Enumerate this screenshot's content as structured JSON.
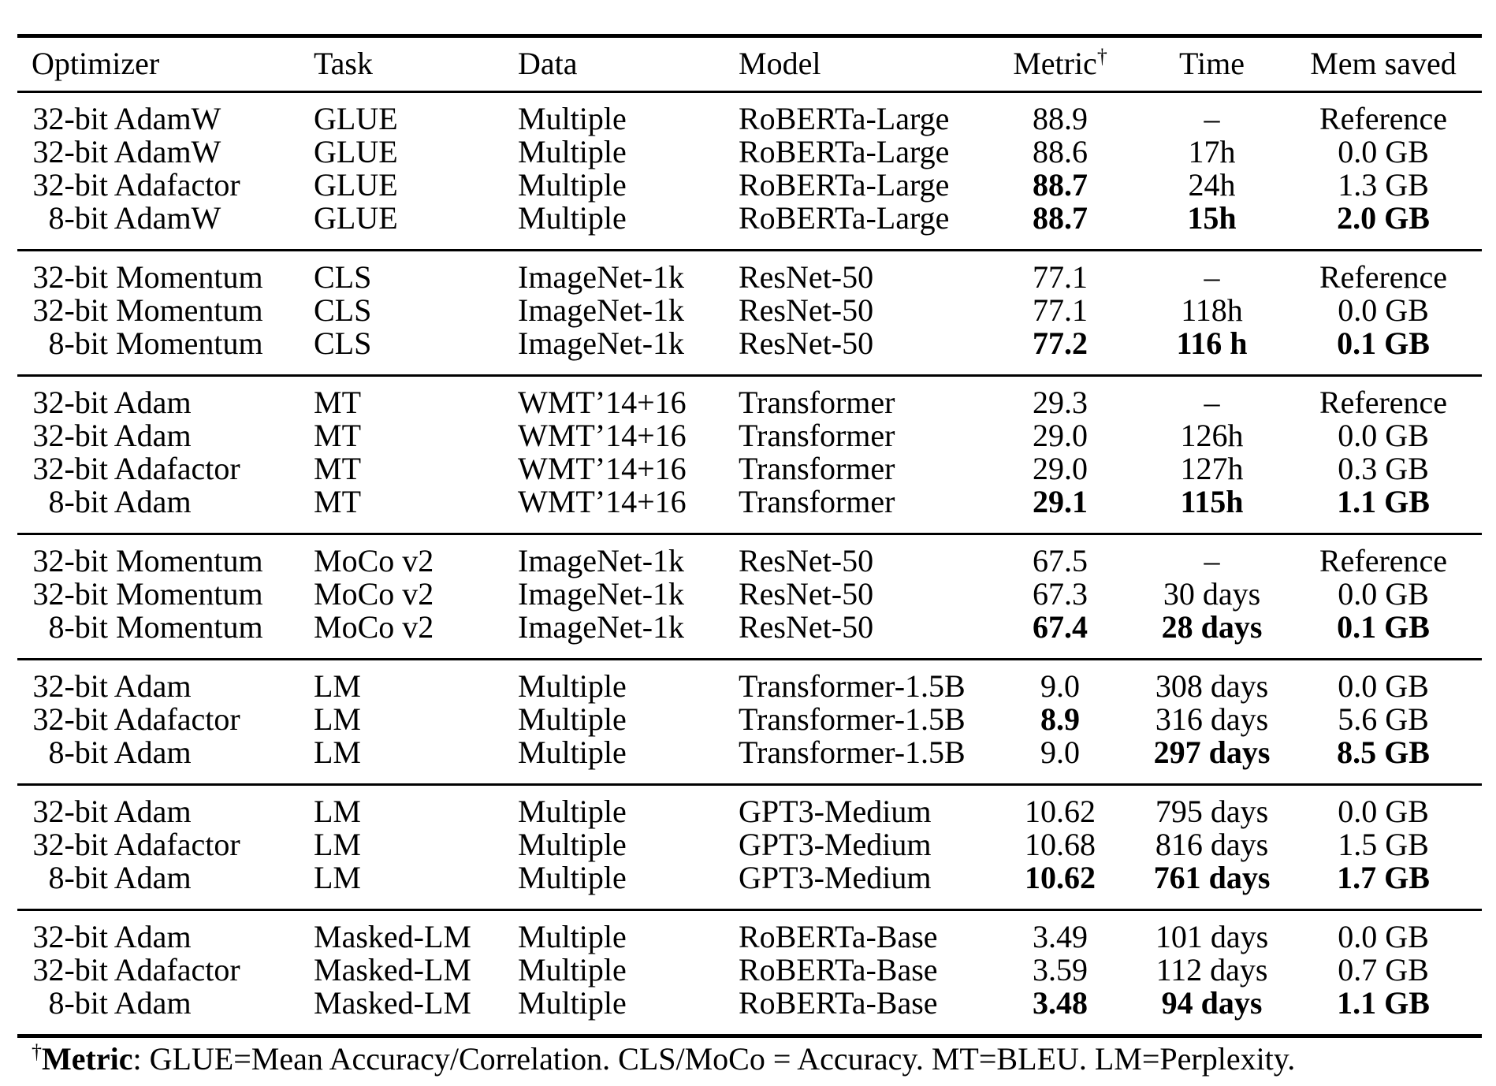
{
  "colors": {
    "background": "#ffffff",
    "text": "#000000",
    "rule": "#000000"
  },
  "table": {
    "columns": [
      {
        "key": "optimizer",
        "label": "Optimizer",
        "align": "left"
      },
      {
        "key": "task",
        "label": "Task",
        "align": "left"
      },
      {
        "key": "data",
        "label": "Data",
        "align": "left"
      },
      {
        "key": "model",
        "label": "Model",
        "align": "left"
      },
      {
        "key": "metric",
        "label": "Metric",
        "superscript": "†",
        "align": "center"
      },
      {
        "key": "time",
        "label": "Time",
        "align": "center"
      },
      {
        "key": "mem",
        "label": "Mem saved",
        "align": "center"
      }
    ],
    "groups": [
      {
        "rows": [
          {
            "bits": "32-bit",
            "name": "AdamW",
            "task": "GLUE",
            "data": "Multiple",
            "model": "RoBERTa-Large",
            "metric": "88.9",
            "time": "–",
            "mem": "Reference",
            "bold": []
          },
          {
            "bits": "32-bit",
            "name": "AdamW",
            "task": "GLUE",
            "data": "Multiple",
            "model": "RoBERTa-Large",
            "metric": "88.6",
            "time": "17h",
            "mem": "0.0 GB",
            "bold": []
          },
          {
            "bits": "32-bit",
            "name": "Adafactor",
            "task": "GLUE",
            "data": "Multiple",
            "model": "RoBERTa-Large",
            "metric": "88.7",
            "time": "24h",
            "mem": "1.3 GB",
            "bold": [
              "metric"
            ]
          },
          {
            "bits": "8-bit",
            "name": "AdamW",
            "task": "GLUE",
            "data": "Multiple",
            "model": "RoBERTa-Large",
            "metric": "88.7",
            "time": "15h",
            "mem": "2.0 GB",
            "bold": [
              "metric",
              "time",
              "mem"
            ]
          }
        ]
      },
      {
        "rows": [
          {
            "bits": "32-bit",
            "name": "Momentum",
            "task": "CLS",
            "data": "ImageNet-1k",
            "model": "ResNet-50",
            "metric": "77.1",
            "time": "–",
            "mem": "Reference",
            "bold": []
          },
          {
            "bits": "32-bit",
            "name": "Momentum",
            "task": "CLS",
            "data": "ImageNet-1k",
            "model": "ResNet-50",
            "metric": "77.1",
            "time": "118h",
            "mem": "0.0 GB",
            "bold": []
          },
          {
            "bits": "8-bit",
            "name": "Momentum",
            "task": "CLS",
            "data": "ImageNet-1k",
            "model": "ResNet-50",
            "metric": "77.2",
            "time": "116 h",
            "mem": "0.1 GB",
            "bold": [
              "metric",
              "time",
              "mem"
            ]
          }
        ]
      },
      {
        "rows": [
          {
            "bits": "32-bit",
            "name": "Adam",
            "task": "MT",
            "data": "WMT’14+16",
            "model": "Transformer",
            "metric": "29.3",
            "time": "–",
            "mem": "Reference",
            "bold": []
          },
          {
            "bits": "32-bit",
            "name": "Adam",
            "task": "MT",
            "data": "WMT’14+16",
            "model": "Transformer",
            "metric": "29.0",
            "time": "126h",
            "mem": "0.0 GB",
            "bold": []
          },
          {
            "bits": "32-bit",
            "name": "Adafactor",
            "task": "MT",
            "data": "WMT’14+16",
            "model": "Transformer",
            "metric": "29.0",
            "time": "127h",
            "mem": "0.3 GB",
            "bold": []
          },
          {
            "bits": "8-bit",
            "name": "Adam",
            "task": "MT",
            "data": "WMT’14+16",
            "model": "Transformer",
            "metric": "29.1",
            "time": "115h",
            "mem": "1.1 GB",
            "bold": [
              "metric",
              "time",
              "mem"
            ]
          }
        ]
      },
      {
        "rows": [
          {
            "bits": "32-bit",
            "name": "Momentum",
            "task": "MoCo v2",
            "data": "ImageNet-1k",
            "model": "ResNet-50",
            "metric": "67.5",
            "time": "–",
            "mem": "Reference",
            "bold": []
          },
          {
            "bits": "32-bit",
            "name": "Momentum",
            "task": "MoCo v2",
            "data": "ImageNet-1k",
            "model": "ResNet-50",
            "metric": "67.3",
            "time": "30 days",
            "mem": "0.0 GB",
            "bold": []
          },
          {
            "bits": "8-bit",
            "name": "Momentum",
            "task": "MoCo v2",
            "data": "ImageNet-1k",
            "model": "ResNet-50",
            "metric": "67.4",
            "time": "28 days",
            "mem": "0.1 GB",
            "bold": [
              "metric",
              "time",
              "mem"
            ]
          }
        ]
      },
      {
        "rows": [
          {
            "bits": "32-bit",
            "name": "Adam",
            "task": "LM",
            "data": "Multiple",
            "model": "Transformer-1.5B",
            "metric": "9.0",
            "time": "308 days",
            "mem": "0.0 GB",
            "bold": []
          },
          {
            "bits": "32-bit",
            "name": "Adafactor",
            "task": "LM",
            "data": "Multiple",
            "model": "Transformer-1.5B",
            "metric": "8.9",
            "time": "316 days",
            "mem": "5.6 GB",
            "bold": [
              "metric"
            ]
          },
          {
            "bits": "8-bit",
            "name": "Adam",
            "task": "LM",
            "data": "Multiple",
            "model": "Transformer-1.5B",
            "metric": "9.0",
            "time": "297 days",
            "mem": "8.5 GB",
            "bold": [
              "time",
              "mem"
            ]
          }
        ]
      },
      {
        "rows": [
          {
            "bits": "32-bit",
            "name": "Adam",
            "task": "LM",
            "data": "Multiple",
            "model": "GPT3-Medium",
            "metric": "10.62",
            "time": "795 days",
            "mem": "0.0 GB",
            "bold": []
          },
          {
            "bits": "32-bit",
            "name": "Adafactor",
            "task": "LM",
            "data": "Multiple",
            "model": "GPT3-Medium",
            "metric": "10.68",
            "time": "816 days",
            "mem": "1.5 GB",
            "bold": []
          },
          {
            "bits": "8-bit",
            "name": "Adam",
            "task": "LM",
            "data": "Multiple",
            "model": "GPT3-Medium",
            "metric": "10.62",
            "time": "761 days",
            "mem": "1.7 GB",
            "bold": [
              "metric",
              "time",
              "mem"
            ]
          }
        ]
      },
      {
        "rows": [
          {
            "bits": "32-bit",
            "name": "Adam",
            "task": "Masked-LM",
            "data": "Multiple",
            "model": "RoBERTa-Base",
            "metric": "3.49",
            "time": "101 days",
            "mem": "0.0 GB",
            "bold": []
          },
          {
            "bits": "32-bit",
            "name": "Adafactor",
            "task": "Masked-LM",
            "data": "Multiple",
            "model": "RoBERTa-Base",
            "metric": "3.59",
            "time": "112 days",
            "mem": "0.7 GB",
            "bold": []
          },
          {
            "bits": "8-bit",
            "name": "Adam",
            "task": "Masked-LM",
            "data": "Multiple",
            "model": "RoBERTa-Base",
            "metric": "3.48",
            "time": "94 days",
            "mem": "1.1 GB",
            "bold": [
              "metric",
              "time",
              "mem"
            ]
          }
        ]
      }
    ]
  },
  "footnote": {
    "dagger": "†",
    "label": "Metric",
    "rest": ": GLUE=Mean Accuracy/Correlation. CLS/MoCo = Accuracy. MT=BLEU. LM=Perplexity."
  }
}
